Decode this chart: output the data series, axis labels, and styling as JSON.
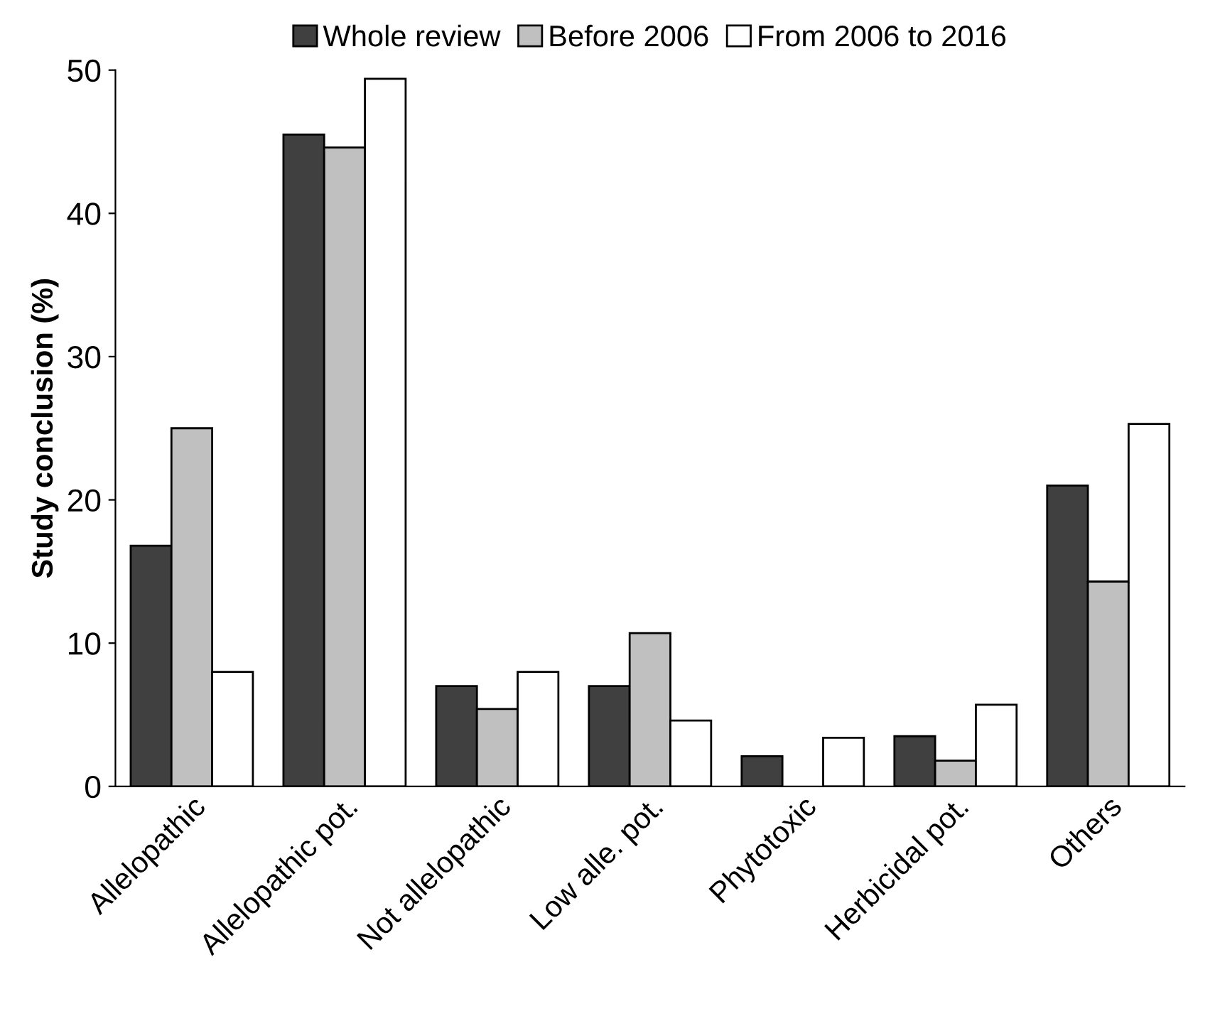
{
  "chart_data": {
    "type": "bar",
    "ylabel": "Study conclusion (%)",
    "categories": [
      "Allelopathic",
      "Allelopathic pot.",
      "Not allelopathic",
      "Low alle. pot.",
      "Phytotoxic",
      "Herbicidal pot.",
      "Others"
    ],
    "series": [
      {
        "name": "Whole review",
        "color": "#404040",
        "values": [
          16.8,
          45.5,
          7.0,
          7.0,
          2.1,
          3.5,
          21.0
        ]
      },
      {
        "name": "Before 2006",
        "color": "#c0c0c0",
        "values": [
          25.0,
          44.6,
          5.4,
          10.7,
          null,
          1.8,
          14.3
        ]
      },
      {
        "name": "From 2006 to 2016",
        "color": "#ffffff",
        "values": [
          8.0,
          49.4,
          8.0,
          4.6,
          3.4,
          5.7,
          25.3
        ]
      }
    ],
    "ylim": [
      0,
      50
    ],
    "yticks": [
      0,
      10,
      20,
      30,
      40,
      50
    ],
    "grid": false,
    "legend": "top"
  }
}
